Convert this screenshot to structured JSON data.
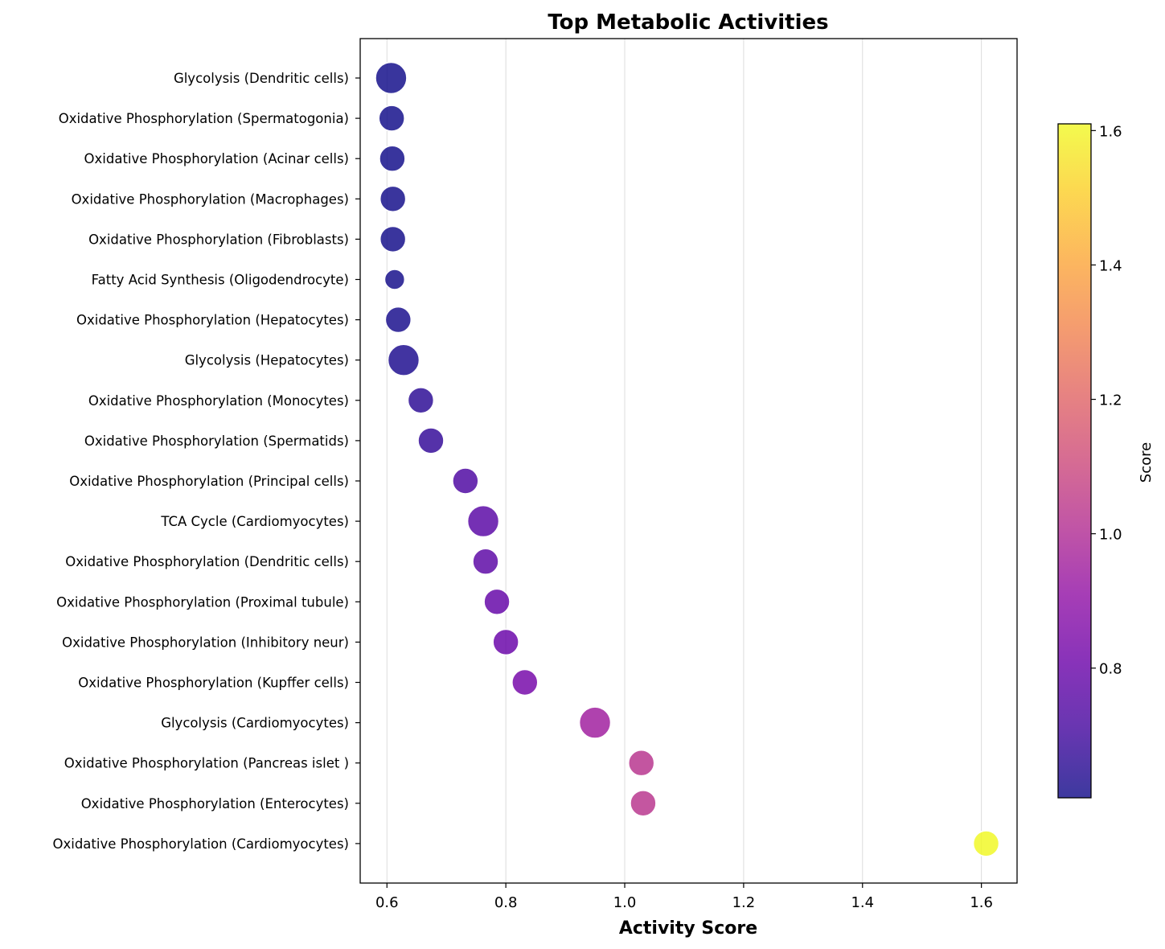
{
  "chart_data": {
    "type": "scatter",
    "title": "Top Metabolic Activities",
    "xlabel": "Activity Score",
    "ylabel": "",
    "xlim": [
      0.555,
      1.66
    ],
    "xticks": [
      0.6,
      0.8,
      1.0,
      1.2,
      1.4,
      1.6
    ],
    "xtick_labels": [
      "0.6",
      "0.8",
      "1.0",
      "1.2",
      "1.4",
      "1.6"
    ],
    "grid": "x-only",
    "colormap": "plasma",
    "colorbar": {
      "label": "Score",
      "range": [
        0.607,
        1.61
      ],
      "ticks": [
        0.8,
        1.0,
        1.2,
        1.4,
        1.6
      ],
      "tick_labels": [
        "0.8",
        "1.0",
        "1.2",
        "1.4",
        "1.6"
      ]
    },
    "categories": [
      "Glycolysis (Dendritic cells)",
      "Oxidative Phosphorylation (Spermatogonia)",
      "Oxidative Phosphorylation (Acinar cells)",
      "Oxidative Phosphorylation (Macrophages)",
      "Oxidative Phosphorylation (Fibroblasts)",
      "Fatty Acid Synthesis (Oligodendrocyte)",
      "Oxidative Phosphorylation (Hepatocytes)",
      "Glycolysis (Hepatocytes)",
      "Oxidative Phosphorylation (Monocytes)",
      "Oxidative Phosphorylation (Spermatids)",
      "Oxidative Phosphorylation (Principal cells)",
      "TCA Cycle (Cardiomyocytes)",
      "Oxidative Phosphorylation (Dendritic cells)",
      "Oxidative Phosphorylation (Proximal tubule)",
      "Oxidative Phosphorylation (Inhibitory neur)",
      "Oxidative Phosphorylation (Kupffer cells)",
      "Glycolysis (Cardiomyocytes)",
      "Oxidative Phosphorylation (Pancreas islet )",
      "Oxidative Phosphorylation (Enterocytes)",
      "Oxidative Phosphorylation (Cardiomyocytes)"
    ],
    "values": [
      0.607,
      0.608,
      0.609,
      0.61,
      0.61,
      0.613,
      0.619,
      0.628,
      0.657,
      0.674,
      0.732,
      0.762,
      0.766,
      0.785,
      0.8,
      0.832,
      0.95,
      1.028,
      1.031,
      1.608
    ],
    "sizes": [
      "large",
      "medium",
      "medium",
      "medium",
      "medium",
      "small",
      "medium",
      "large",
      "medium",
      "medium",
      "medium",
      "large",
      "medium",
      "medium",
      "medium",
      "medium",
      "large",
      "medium",
      "medium",
      "medium"
    ]
  }
}
